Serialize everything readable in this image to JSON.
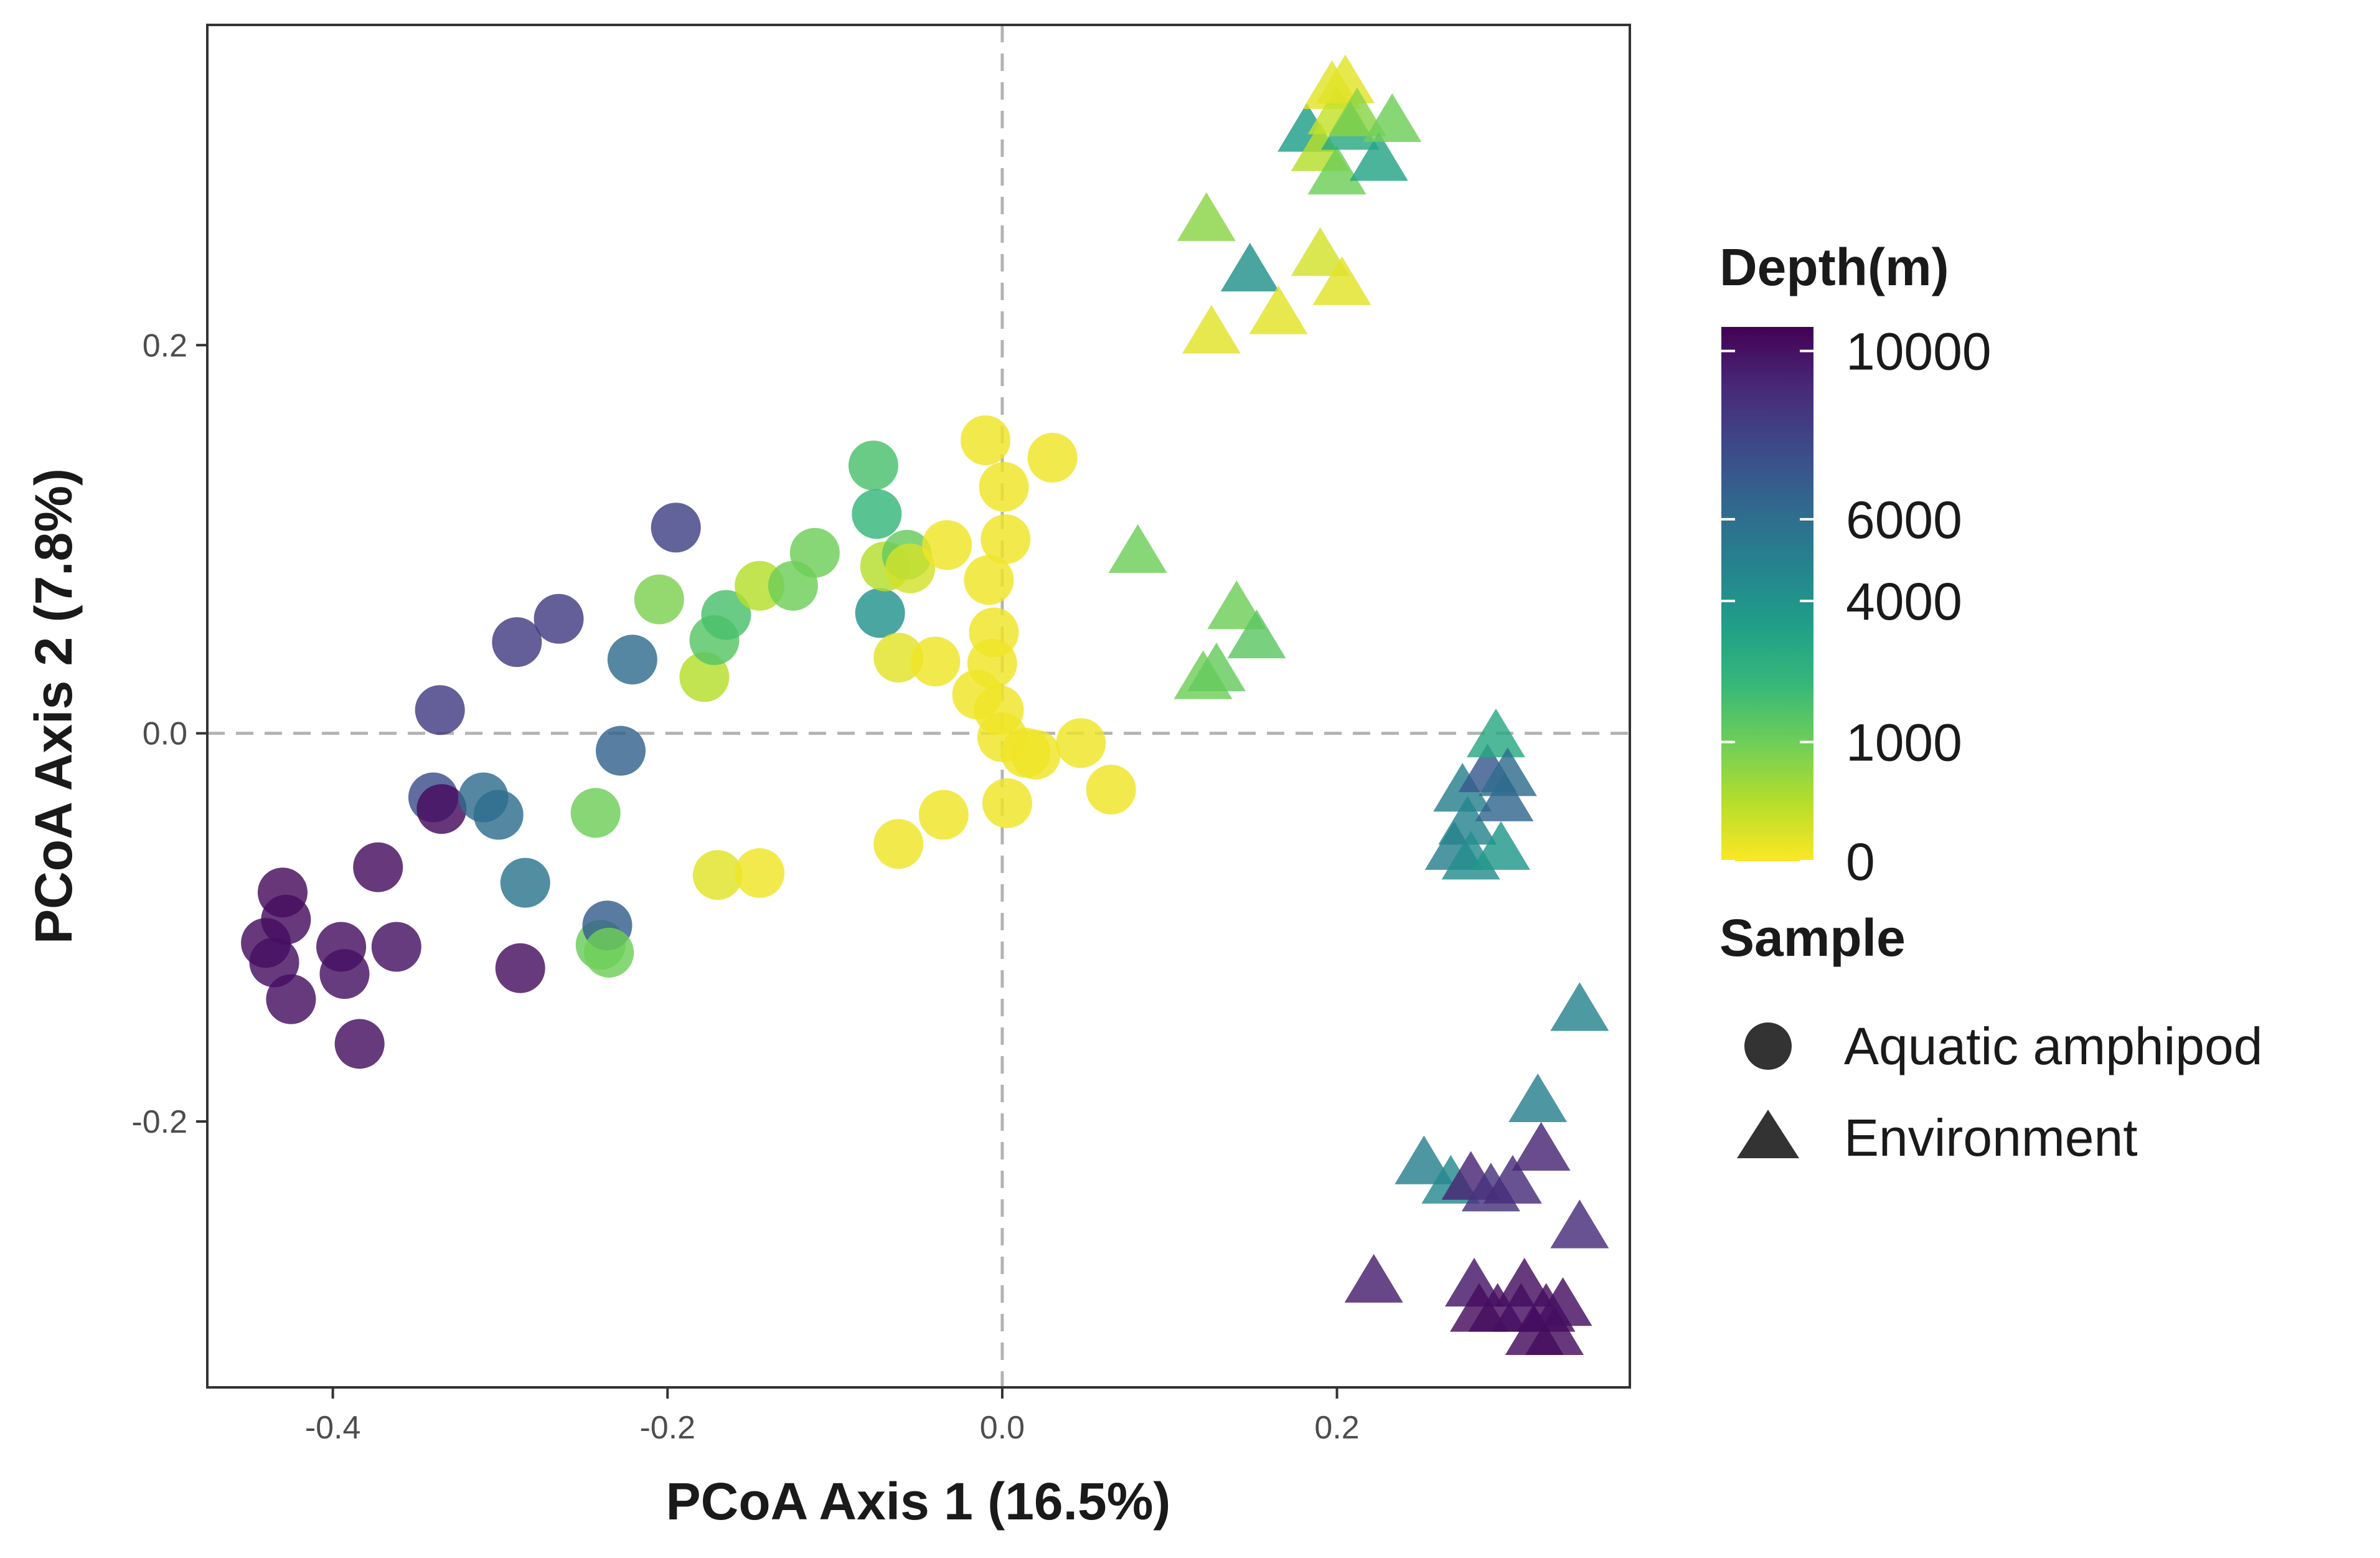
{
  "chart_data": {
    "type": "scatter",
    "title": "",
    "xlabel": "PCoA Axis 1 (16.5%)",
    "ylabel": "PCoA Axis 2 (7.8%)",
    "xlim": [
      -0.475,
      0.375
    ],
    "ylim": [
      -0.337,
      0.365
    ],
    "x_ticks": [
      -0.4,
      -0.2,
      0.0,
      0.2
    ],
    "x_tick_labels": [
      "-0.4",
      "-0.2",
      "0.0",
      "0.2"
    ],
    "y_ticks": [
      -0.2,
      0.0,
      0.2
    ],
    "y_tick_labels": [
      "-0.2",
      "0.0",
      "0.2"
    ],
    "reference_lines": {
      "x": 0,
      "y": 0,
      "style": "dashed"
    },
    "grid": false,
    "color_legend": {
      "title": "Depth(m)",
      "ticks": [
        0,
        1000,
        4000,
        6000,
        10000
      ],
      "tick_labels": [
        "0",
        "1000",
        "4000",
        "6000",
        "10000"
      ],
      "colormap": "viridis-reversed",
      "colors": [
        "#fde725",
        "#b5de2b",
        "#6ece58",
        "#35b779",
        "#1f9e89",
        "#26828e",
        "#31688e",
        "#3e4989",
        "#482878",
        "#440154"
      ]
    },
    "shape_legend": {
      "title": "Sample",
      "entries": [
        {
          "label": "Aquatic amphipod",
          "shape": "circle"
        },
        {
          "label": "Environment",
          "shape": "triangle"
        }
      ]
    },
    "series": [
      {
        "name": "Aquatic amphipod",
        "shape": "circle",
        "points": [
          {
            "x": -0.44,
            "y": -0.108,
            "depth": 10500
          },
          {
            "x": -0.435,
            "y": -0.118,
            "depth": 10200
          },
          {
            "x": -0.43,
            "y": -0.082,
            "depth": 10800
          },
          {
            "x": -0.428,
            "y": -0.096,
            "depth": 10600
          },
          {
            "x": -0.425,
            "y": -0.137,
            "depth": 10300
          },
          {
            "x": -0.395,
            "y": -0.11,
            "depth": 10400
          },
          {
            "x": -0.393,
            "y": -0.124,
            "depth": 10000
          },
          {
            "x": -0.384,
            "y": -0.16,
            "depth": 10200
          },
          {
            "x": -0.373,
            "y": -0.069,
            "depth": 10700
          },
          {
            "x": -0.362,
            "y": -0.11,
            "depth": 10000
          },
          {
            "x": -0.34,
            "y": -0.033,
            "depth": 7500
          },
          {
            "x": -0.336,
            "y": 0.012,
            "depth": 8300
          },
          {
            "x": -0.335,
            "y": -0.039,
            "depth": 10900
          },
          {
            "x": -0.31,
            "y": -0.033,
            "depth": 6200
          },
          {
            "x": -0.301,
            "y": -0.042,
            "depth": 6000
          },
          {
            "x": -0.288,
            "y": -0.121,
            "depth": 10200
          },
          {
            "x": -0.285,
            "y": -0.077,
            "depth": 5600
          },
          {
            "x": -0.265,
            "y": 0.059,
            "depth": 8300
          },
          {
            "x": -0.29,
            "y": 0.047,
            "depth": 8300
          },
          {
            "x": -0.243,
            "y": -0.041,
            "depth": 1000
          },
          {
            "x": -0.24,
            "y": -0.109,
            "depth": 1100
          },
          {
            "x": -0.236,
            "y": -0.099,
            "depth": 6800
          },
          {
            "x": -0.235,
            "y": -0.113,
            "depth": 1000
          },
          {
            "x": -0.228,
            "y": -0.009,
            "depth": 6600
          },
          {
            "x": -0.221,
            "y": 0.038,
            "depth": 6200
          },
          {
            "x": -0.195,
            "y": 0.106,
            "depth": 8100
          },
          {
            "x": -0.205,
            "y": 0.069,
            "depth": 900
          },
          {
            "x": -0.178,
            "y": 0.029,
            "depth": 500
          },
          {
            "x": -0.172,
            "y": 0.048,
            "depth": 1500
          },
          {
            "x": -0.165,
            "y": 0.061,
            "depth": 1800
          },
          {
            "x": -0.17,
            "y": -0.073,
            "depth": 200
          },
          {
            "x": -0.145,
            "y": -0.072,
            "depth": 100
          },
          {
            "x": -0.145,
            "y": 0.076,
            "depth": 500
          },
          {
            "x": -0.125,
            "y": 0.076,
            "depth": 1000
          },
          {
            "x": -0.112,
            "y": 0.093,
            "depth": 1000
          },
          {
            "x": -0.077,
            "y": 0.138,
            "depth": 1800
          },
          {
            "x": -0.075,
            "y": 0.113,
            "depth": 2300
          },
          {
            "x": -0.073,
            "y": 0.062,
            "depth": 4000
          },
          {
            "x": -0.07,
            "y": 0.086,
            "depth": 500
          },
          {
            "x": -0.062,
            "y": -0.057,
            "depth": 100
          },
          {
            "x": -0.062,
            "y": 0.039,
            "depth": 200
          },
          {
            "x": -0.057,
            "y": 0.092,
            "depth": 1200
          },
          {
            "x": -0.055,
            "y": 0.085,
            "depth": 300
          },
          {
            "x": -0.04,
            "y": 0.037,
            "depth": 100
          },
          {
            "x": -0.035,
            "y": -0.042,
            "depth": 100
          },
          {
            "x": -0.033,
            "y": 0.097,
            "depth": 100
          },
          {
            "x": -0.01,
            "y": 0.151,
            "depth": 100
          },
          {
            "x": -0.015,
            "y": 0.02,
            "depth": 100
          },
          {
            "x": -0.008,
            "y": 0.079,
            "depth": 100
          },
          {
            "x": -0.006,
            "y": 0.036,
            "depth": 100
          },
          {
            "x": -0.005,
            "y": 0.052,
            "depth": 100
          },
          {
            "x": -0.002,
            "y": 0.012,
            "depth": 100
          },
          {
            "x": 0.0,
            "y": -0.002,
            "depth": 100
          },
          {
            "x": 0.001,
            "y": 0.127,
            "depth": 100
          },
          {
            "x": 0.002,
            "y": 0.1,
            "depth": 100
          },
          {
            "x": 0.003,
            "y": -0.036,
            "depth": 100
          },
          {
            "x": 0.014,
            "y": -0.01,
            "depth": 100
          },
          {
            "x": 0.02,
            "y": -0.011,
            "depth": 100
          },
          {
            "x": 0.03,
            "y": 0.142,
            "depth": 100
          },
          {
            "x": 0.047,
            "y": -0.005,
            "depth": 100
          },
          {
            "x": 0.065,
            "y": -0.029,
            "depth": 100
          }
        ]
      },
      {
        "name": "Environment",
        "shape": "triangle",
        "points": [
          {
            "x": 0.081,
            "y": 0.093,
            "depth": 1000
          },
          {
            "x": 0.12,
            "y": 0.028,
            "depth": 1000
          },
          {
            "x": 0.122,
            "y": 0.264,
            "depth": 800
          },
          {
            "x": 0.128,
            "y": 0.032,
            "depth": 1200
          },
          {
            "x": 0.125,
            "y": 0.206,
            "depth": 200
          },
          {
            "x": 0.14,
            "y": 0.064,
            "depth": 1000
          },
          {
            "x": 0.148,
            "y": 0.238,
            "depth": 4100
          },
          {
            "x": 0.152,
            "y": 0.049,
            "depth": 1400
          },
          {
            "x": 0.165,
            "y": 0.216,
            "depth": 200
          },
          {
            "x": 0.182,
            "y": 0.31,
            "depth": 3500
          },
          {
            "x": 0.19,
            "y": 0.3,
            "depth": 500
          },
          {
            "x": 0.19,
            "y": 0.246,
            "depth": 300
          },
          {
            "x": 0.197,
            "y": 0.332,
            "depth": 200
          },
          {
            "x": 0.2,
            "y": 0.288,
            "depth": 1000
          },
          {
            "x": 0.2,
            "y": 0.319,
            "depth": 400
          },
          {
            "x": 0.203,
            "y": 0.231,
            "depth": 200
          },
          {
            "x": 0.205,
            "y": 0.335,
            "depth": 200
          },
          {
            "x": 0.208,
            "y": 0.311,
            "depth": 3000
          },
          {
            "x": 0.212,
            "y": 0.318,
            "depth": 800
          },
          {
            "x": 0.225,
            "y": 0.295,
            "depth": 3200
          },
          {
            "x": 0.233,
            "y": 0.315,
            "depth": 1000
          },
          {
            "x": 0.222,
            "y": -0.283,
            "depth": 9500
          },
          {
            "x": 0.252,
            "y": -0.222,
            "depth": 5000
          },
          {
            "x": 0.268,
            "y": -0.232,
            "depth": 4500
          },
          {
            "x": 0.27,
            "y": -0.06,
            "depth": 5000
          },
          {
            "x": 0.275,
            "y": -0.03,
            "depth": 5000
          },
          {
            "x": 0.278,
            "y": -0.047,
            "depth": 4800
          },
          {
            "x": 0.28,
            "y": -0.065,
            "depth": 4300
          },
          {
            "x": 0.282,
            "y": -0.285,
            "depth": 9800
          },
          {
            "x": 0.28,
            "y": -0.23,
            "depth": 9300
          },
          {
            "x": 0.285,
            "y": -0.298,
            "depth": 10800
          },
          {
            "x": 0.29,
            "y": -0.02,
            "depth": 7000
          },
          {
            "x": 0.292,
            "y": -0.236,
            "depth": 8700
          },
          {
            "x": 0.295,
            "y": -0.002,
            "depth": 3000
          },
          {
            "x": 0.296,
            "y": -0.298,
            "depth": 10500
          },
          {
            "x": 0.298,
            "y": -0.06,
            "depth": 3800
          },
          {
            "x": 0.3,
            "y": -0.035,
            "depth": 6400
          },
          {
            "x": 0.302,
            "y": -0.022,
            "depth": 6100
          },
          {
            "x": 0.305,
            "y": -0.232,
            "depth": 9000
          },
          {
            "x": 0.31,
            "y": -0.298,
            "depth": 10200
          },
          {
            "x": 0.312,
            "y": -0.285,
            "depth": 10400
          },
          {
            "x": 0.318,
            "y": -0.31,
            "depth": 10800
          },
          {
            "x": 0.32,
            "y": -0.19,
            "depth": 5000
          },
          {
            "x": 0.322,
            "y": -0.215,
            "depth": 9300
          },
          {
            "x": 0.325,
            "y": -0.298,
            "depth": 10500
          },
          {
            "x": 0.33,
            "y": -0.31,
            "depth": 10700
          },
          {
            "x": 0.335,
            "y": -0.295,
            "depth": 10300
          },
          {
            "x": 0.345,
            "y": -0.255,
            "depth": 9000
          },
          {
            "x": 0.345,
            "y": -0.143,
            "depth": 4800
          }
        ]
      }
    ]
  }
}
